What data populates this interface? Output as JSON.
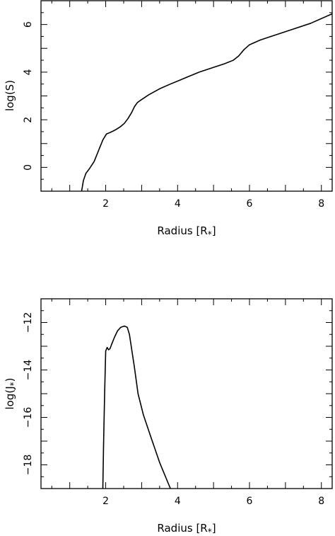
{
  "chart_data": [
    {
      "type": "line",
      "xlabel": "Radius [R*]",
      "ylabel": "log(S)",
      "xlim": [
        0.2,
        8.3
      ],
      "ylim": [
        -1,
        7
      ],
      "xticks": [
        2,
        4,
        6,
        8
      ],
      "yticks": [
        0,
        2,
        4,
        6
      ],
      "xminor_step": 0.5,
      "yminor_step": 0.5,
      "series": [
        {
          "x": [
            1.33,
            1.38,
            1.45,
            1.55,
            1.68,
            1.8,
            1.92,
            2.02,
            2.1,
            2.2,
            2.3,
            2.42,
            2.52,
            2.62,
            2.72,
            2.8,
            2.88,
            3.0,
            3.2,
            3.5,
            3.8,
            4.2,
            4.6,
            5.0,
            5.3,
            5.55,
            5.7,
            5.85,
            6.0,
            6.3,
            6.7,
            7.2,
            7.7,
            8.3
          ],
          "y": [
            -1.0,
            -0.55,
            -0.25,
            -0.05,
            0.25,
            0.7,
            1.15,
            1.4,
            1.45,
            1.52,
            1.6,
            1.72,
            1.85,
            2.05,
            2.3,
            2.55,
            2.72,
            2.85,
            3.05,
            3.3,
            3.5,
            3.75,
            4.0,
            4.2,
            4.35,
            4.5,
            4.68,
            4.95,
            5.15,
            5.35,
            5.55,
            5.8,
            6.05,
            6.45
          ]
        }
      ]
    },
    {
      "type": "line",
      "xlabel": "Radius [R*]",
      "ylabel": "log(J*)",
      "xlim": [
        0.2,
        8.3
      ],
      "ylim": [
        -19,
        -11
      ],
      "xticks": [
        2,
        4,
        6,
        8
      ],
      "yticks": [
        -12,
        -14,
        -16,
        -18
      ],
      "ytick_labels": [
        "−12",
        "−14",
        "−16",
        "−18"
      ],
      "xminor_step": 0.5,
      "yminor_step": 0.5,
      "series": [
        {
          "x": [
            1.92,
            1.94,
            1.97,
            2.0,
            2.04,
            2.08,
            2.12,
            2.17,
            2.25,
            2.33,
            2.42,
            2.52,
            2.6,
            2.66,
            2.72,
            2.8,
            2.9,
            3.05,
            3.25,
            3.5,
            3.8
          ],
          "y": [
            -19.0,
            -17.2,
            -15.0,
            -13.2,
            -13.05,
            -13.15,
            -13.1,
            -12.9,
            -12.6,
            -12.35,
            -12.2,
            -12.15,
            -12.2,
            -12.5,
            -13.1,
            -13.9,
            -15.0,
            -15.9,
            -16.8,
            -17.9,
            -19.0
          ]
        }
      ]
    }
  ]
}
